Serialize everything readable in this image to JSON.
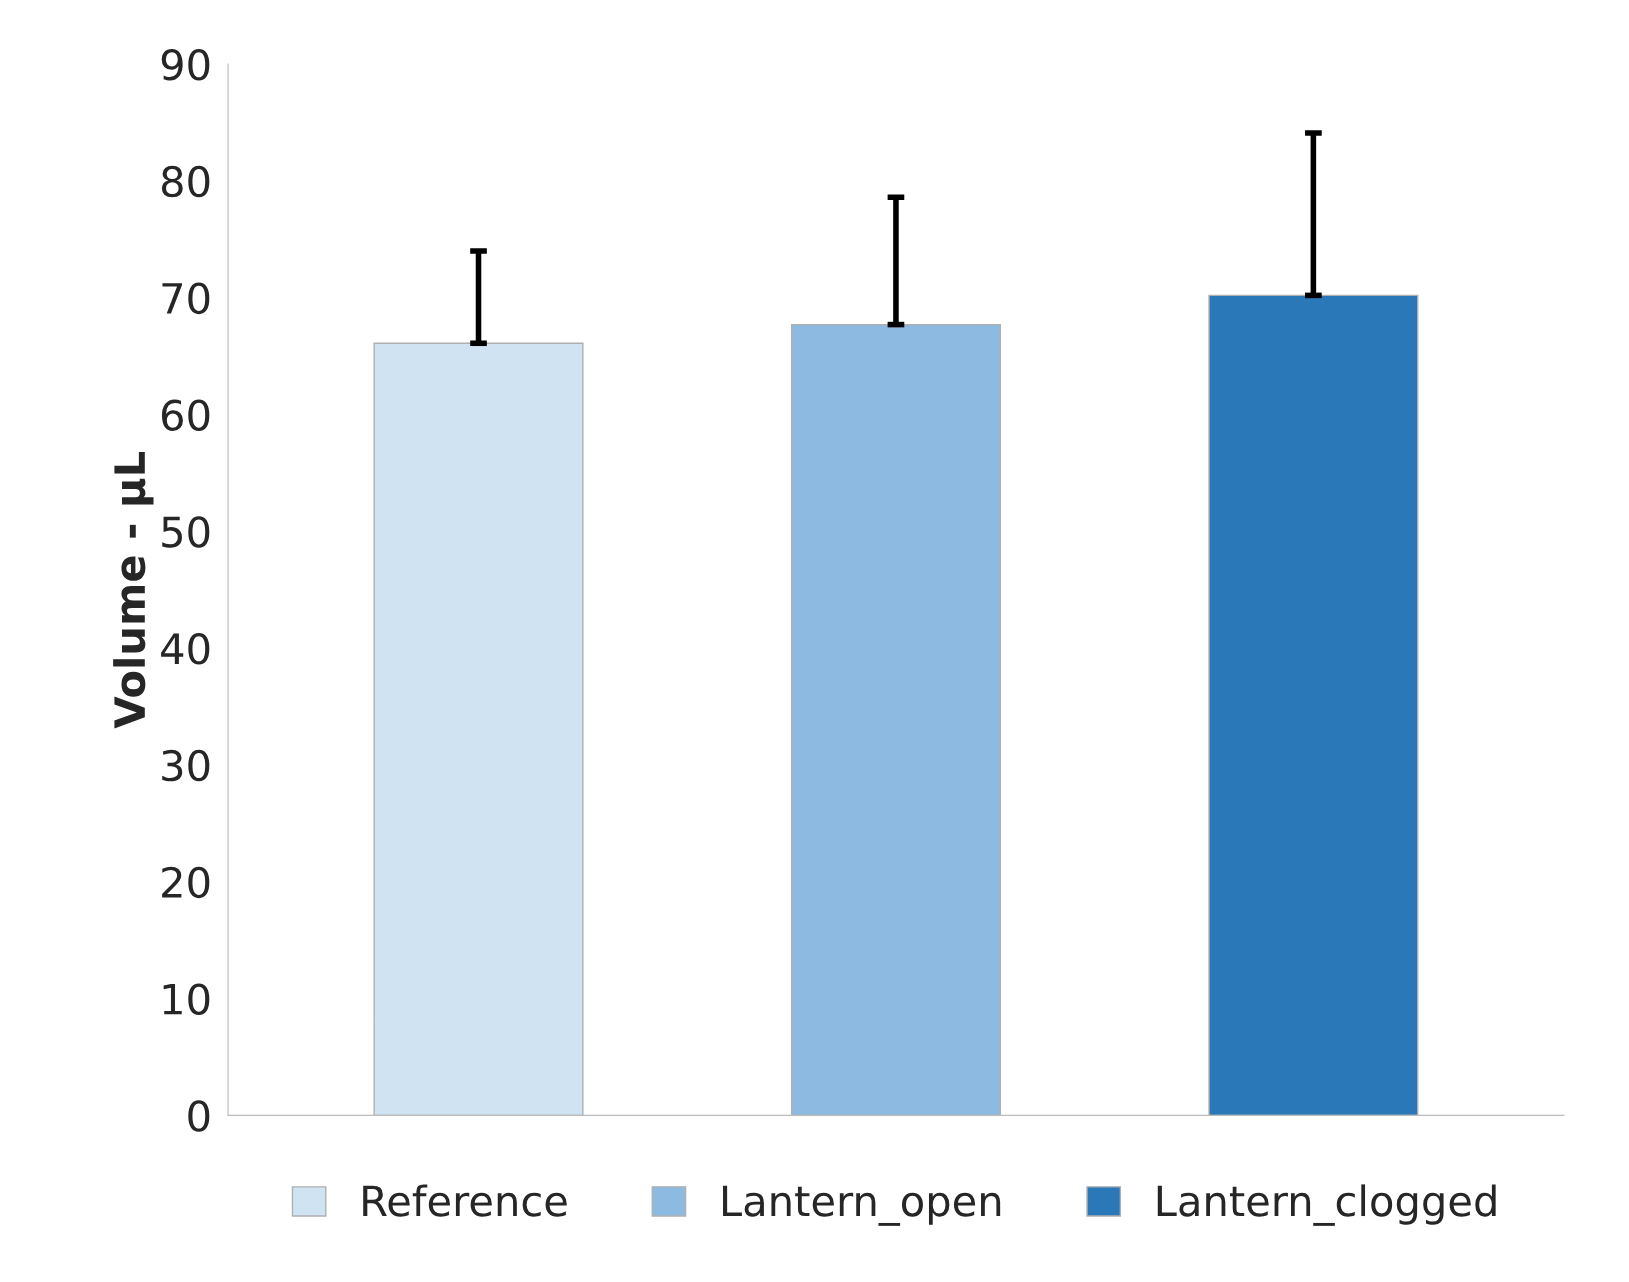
{
  "chart_data": {
    "type": "bar",
    "ylabel": "Volume - µL",
    "categories": [
      null,
      null,
      null
    ],
    "series": [
      {
        "name": "Reference",
        "color": "#d0e3f2",
        "values": [
          66.1,
          null,
          null
        ],
        "errors": [
          [
            66.1,
            74.0
          ],
          null,
          null
        ]
      },
      {
        "name": "Lantern_open",
        "color": "#8dbae0",
        "values": [
          null,
          67.7,
          null
        ],
        "errors": [
          null,
          [
            67.7,
            78.6
          ],
          null
        ]
      },
      {
        "name": "Lantern_clogged",
        "color": "#2a78b8",
        "values": [
          null,
          null,
          70.2
        ],
        "errors": [
          null,
          null,
          [
            70.2,
            84.1
          ]
        ]
      }
    ],
    "ylim": [
      0,
      90
    ],
    "yticks": [
      0,
      10,
      20,
      30,
      40,
      50,
      60,
      70,
      80,
      90
    ],
    "grid": false,
    "legend": "bottom"
  }
}
